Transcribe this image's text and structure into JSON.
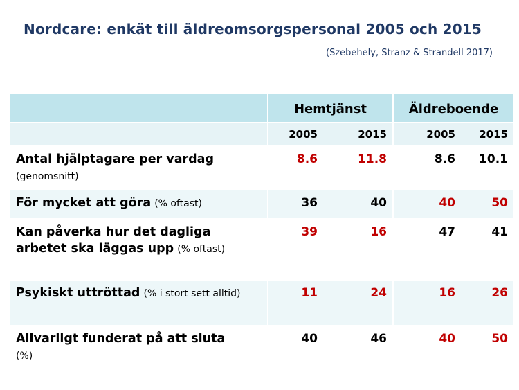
{
  "title": "Nordcare: enkät till äldreomsorgspersonal 2005 och 2015",
  "source": "(Szebehely, Stranz & Strandell 2017)",
  "groups": [
    "Hemtjänst",
    "Äldreboende"
  ],
  "years": [
    "2005",
    "2015",
    "2005",
    "2015"
  ],
  "rows": [
    {
      "label": "Antal hjälptagare per vardag",
      "note": "(genomsnitt)",
      "values": [
        "8.6",
        "11.8",
        "8.6",
        "10.1"
      ]
    },
    {
      "label": "För mycket att göra",
      "note": "(% oftast)",
      "values": [
        "36",
        "40",
        "40",
        "50"
      ]
    },
    {
      "label": "Kan påverka hur det dagliga arbetet ska läggas upp",
      "note": "(% oftast)",
      "values": [
        "39",
        "16",
        "47",
        "41"
      ]
    },
    {
      "label": "Psykiskt uttröttad",
      "note": "(% i stort sett alltid)",
      "values": [
        "11",
        "24",
        "16",
        "26"
      ]
    },
    {
      "label": "Allvarligt funderat på att sluta",
      "note": "(%)",
      "values": [
        "40",
        "46",
        "40",
        "50"
      ]
    }
  ],
  "colors": {
    "title": "#1f3864",
    "header_band": "#bfe4ec",
    "subheader_band": "#e6f3f6",
    "row_shade": "#edf7f9",
    "highlight": "#c00000",
    "normal": "#000000"
  }
}
